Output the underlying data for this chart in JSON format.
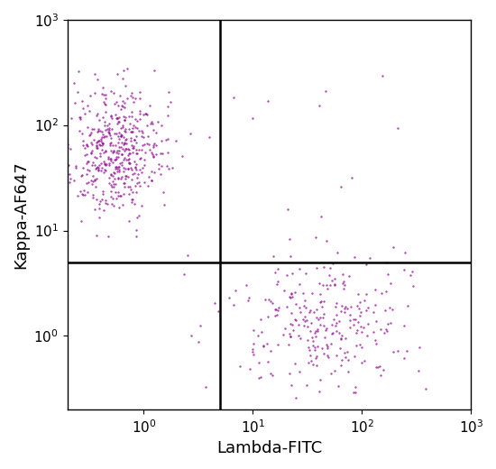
{
  "xlabel": "Lambda-FITC",
  "ylabel": "Kappa-AF647",
  "xlim_low": 0.2,
  "xlim_high": 1000,
  "ylim_low": 0.2,
  "ylim_high": 1000,
  "dot_color": "#8B008B",
  "dot_alpha": 0.7,
  "dot_size": 3,
  "quadrant_x": 5.0,
  "quadrant_y": 5.0,
  "cluster1_n": 480,
  "cluster1_x_log_mean": -0.25,
  "cluster1_x_log_std": 0.22,
  "cluster1_y_log_mean": 1.75,
  "cluster1_y_log_std": 0.3,
  "cluster2_n": 280,
  "cluster2_x_log_mean": 1.6,
  "cluster2_x_log_std": 0.38,
  "cluster2_y_log_mean": 0.1,
  "cluster2_y_log_std": 0.32,
  "scatter_n": 25,
  "seed": 42,
  "fig_width": 5.5,
  "fig_height": 5.2,
  "dpi": 100,
  "axis_fontsize": 13,
  "tick_fontsize": 11,
  "quadrant_linewidth": 1.8,
  "quadrant_linecolor": "black",
  "xtick_labels": [
    "10⁺⁰",
    "10¹",
    "10²",
    "10³"
  ],
  "ytick_labels": [
    "10⁺⁰",
    "10¹",
    "10²",
    "10³"
  ]
}
